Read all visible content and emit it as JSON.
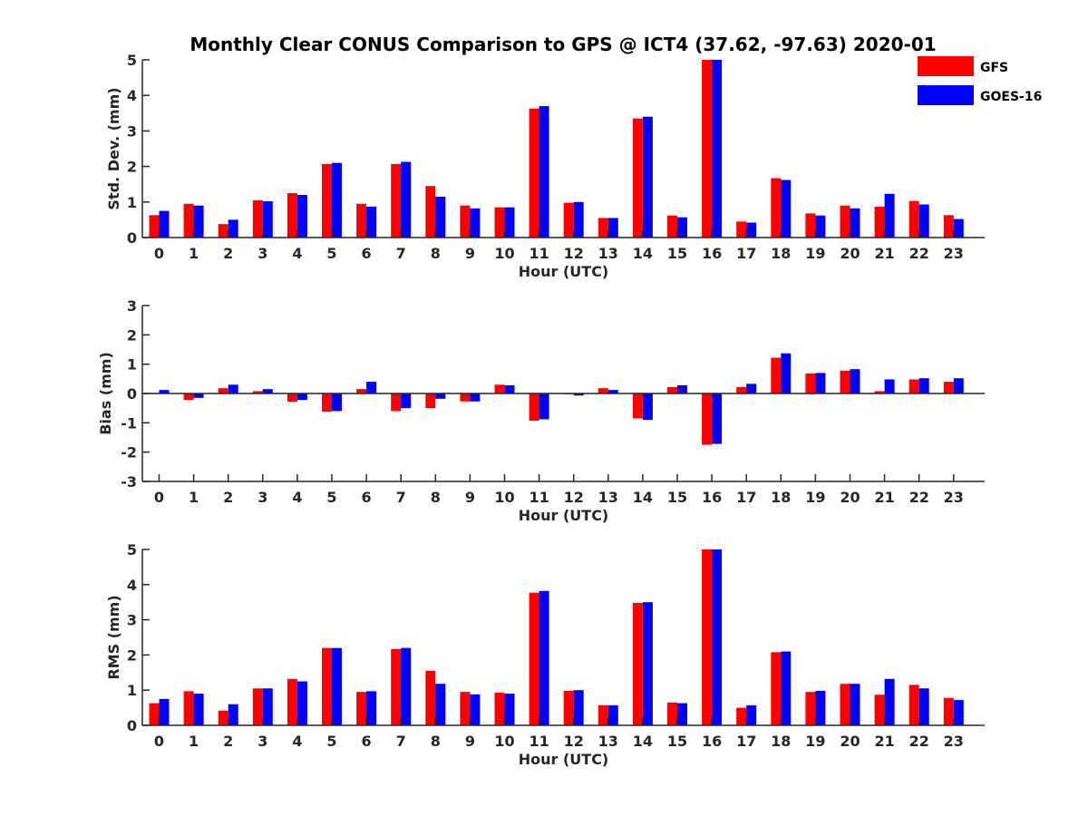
{
  "title": "Monthly Clear CONUS Comparison to GPS @ ICT4 (37.62, -97.63) 2020-01",
  "legend": [
    {
      "name": "GFS",
      "color": "#ff0000"
    },
    {
      "name": "GOES-16",
      "color": "#0000ff"
    }
  ],
  "chart_data": [
    {
      "type": "bar",
      "title": "Monthly Clear CONUS Comparison to GPS @ ICT4 (37.62, -97.63) 2020-01",
      "xlabel": "Hour (UTC)",
      "ylabel": "Std. Dev. (mm)",
      "ylim": [
        0,
        5
      ],
      "yticks": [
        0,
        1,
        2,
        3,
        4,
        5
      ],
      "legend_position": "top-right",
      "categories": [
        "0",
        "1",
        "2",
        "3",
        "4",
        "5",
        "6",
        "7",
        "8",
        "9",
        "10",
        "11",
        "12",
        "13",
        "14",
        "15",
        "16",
        "17",
        "18",
        "19",
        "20",
        "21",
        "22",
        "23"
      ],
      "series": [
        {
          "name": "GFS",
          "color": "#ff0000",
          "values": [
            0.63,
            0.95,
            0.38,
            1.05,
            1.25,
            2.07,
            0.95,
            2.07,
            1.45,
            0.9,
            0.85,
            3.63,
            0.98,
            0.55,
            3.35,
            0.62,
            5.0,
            0.45,
            1.67,
            0.68,
            0.9,
            0.87,
            1.03,
            0.63
          ]
        },
        {
          "name": "GOES-16",
          "color": "#0000ff",
          "values": [
            0.75,
            0.9,
            0.5,
            1.02,
            1.2,
            2.1,
            0.87,
            2.13,
            1.15,
            0.82,
            0.85,
            3.7,
            1.0,
            0.55,
            3.4,
            0.57,
            5.0,
            0.42,
            1.62,
            0.62,
            0.82,
            1.23,
            0.93,
            0.52
          ]
        }
      ]
    },
    {
      "type": "bar",
      "xlabel": "Hour (UTC)",
      "ylabel": "Bias (mm)",
      "ylim": [
        -3,
        3
      ],
      "yticks": [
        -3,
        -2,
        -1,
        0,
        1,
        2,
        3
      ],
      "categories": [
        "0",
        "1",
        "2",
        "3",
        "4",
        "5",
        "6",
        "7",
        "8",
        "9",
        "10",
        "11",
        "12",
        "13",
        "14",
        "15",
        "16",
        "17",
        "18",
        "19",
        "20",
        "21",
        "22",
        "23"
      ],
      "series": [
        {
          "name": "GFS",
          "color": "#ff0000",
          "values": [
            0.02,
            -0.22,
            0.18,
            0.08,
            -0.28,
            -0.62,
            0.15,
            -0.6,
            -0.5,
            -0.27,
            0.3,
            -0.93,
            -0.02,
            0.18,
            -0.85,
            0.22,
            -1.75,
            0.22,
            1.22,
            0.68,
            0.78,
            0.08,
            0.48,
            0.4
          ]
        },
        {
          "name": "GOES-16",
          "color": "#0000ff",
          "values": [
            0.12,
            -0.15,
            0.3,
            0.15,
            -0.22,
            -0.6,
            0.4,
            -0.5,
            -0.18,
            -0.27,
            0.28,
            -0.88,
            -0.07,
            0.12,
            -0.9,
            0.28,
            -1.72,
            0.33,
            1.37,
            0.7,
            0.83,
            0.48,
            0.52,
            0.52
          ]
        }
      ]
    },
    {
      "type": "bar",
      "xlabel": "Hour (UTC)",
      "ylabel": "RMS (mm)",
      "ylim": [
        0,
        5
      ],
      "yticks": [
        0,
        1,
        2,
        3,
        4,
        5
      ],
      "categories": [
        "0",
        "1",
        "2",
        "3",
        "4",
        "5",
        "6",
        "7",
        "8",
        "9",
        "10",
        "11",
        "12",
        "13",
        "14",
        "15",
        "16",
        "17",
        "18",
        "19",
        "20",
        "21",
        "22",
        "23"
      ],
      "series": [
        {
          "name": "GFS",
          "color": "#ff0000",
          "values": [
            0.63,
            0.97,
            0.42,
            1.05,
            1.32,
            2.2,
            0.95,
            2.17,
            1.55,
            0.95,
            0.93,
            3.77,
            0.98,
            0.57,
            3.48,
            0.65,
            5.0,
            0.5,
            2.08,
            0.95,
            1.18,
            0.87,
            1.15,
            0.78
          ]
        },
        {
          "name": "GOES-16",
          "color": "#0000ff",
          "values": [
            0.75,
            0.9,
            0.6,
            1.05,
            1.25,
            2.2,
            0.97,
            2.2,
            1.18,
            0.88,
            0.9,
            3.82,
            1.0,
            0.57,
            3.5,
            0.63,
            5.0,
            0.57,
            2.1,
            0.98,
            1.18,
            1.32,
            1.05,
            0.72
          ]
        }
      ]
    }
  ]
}
